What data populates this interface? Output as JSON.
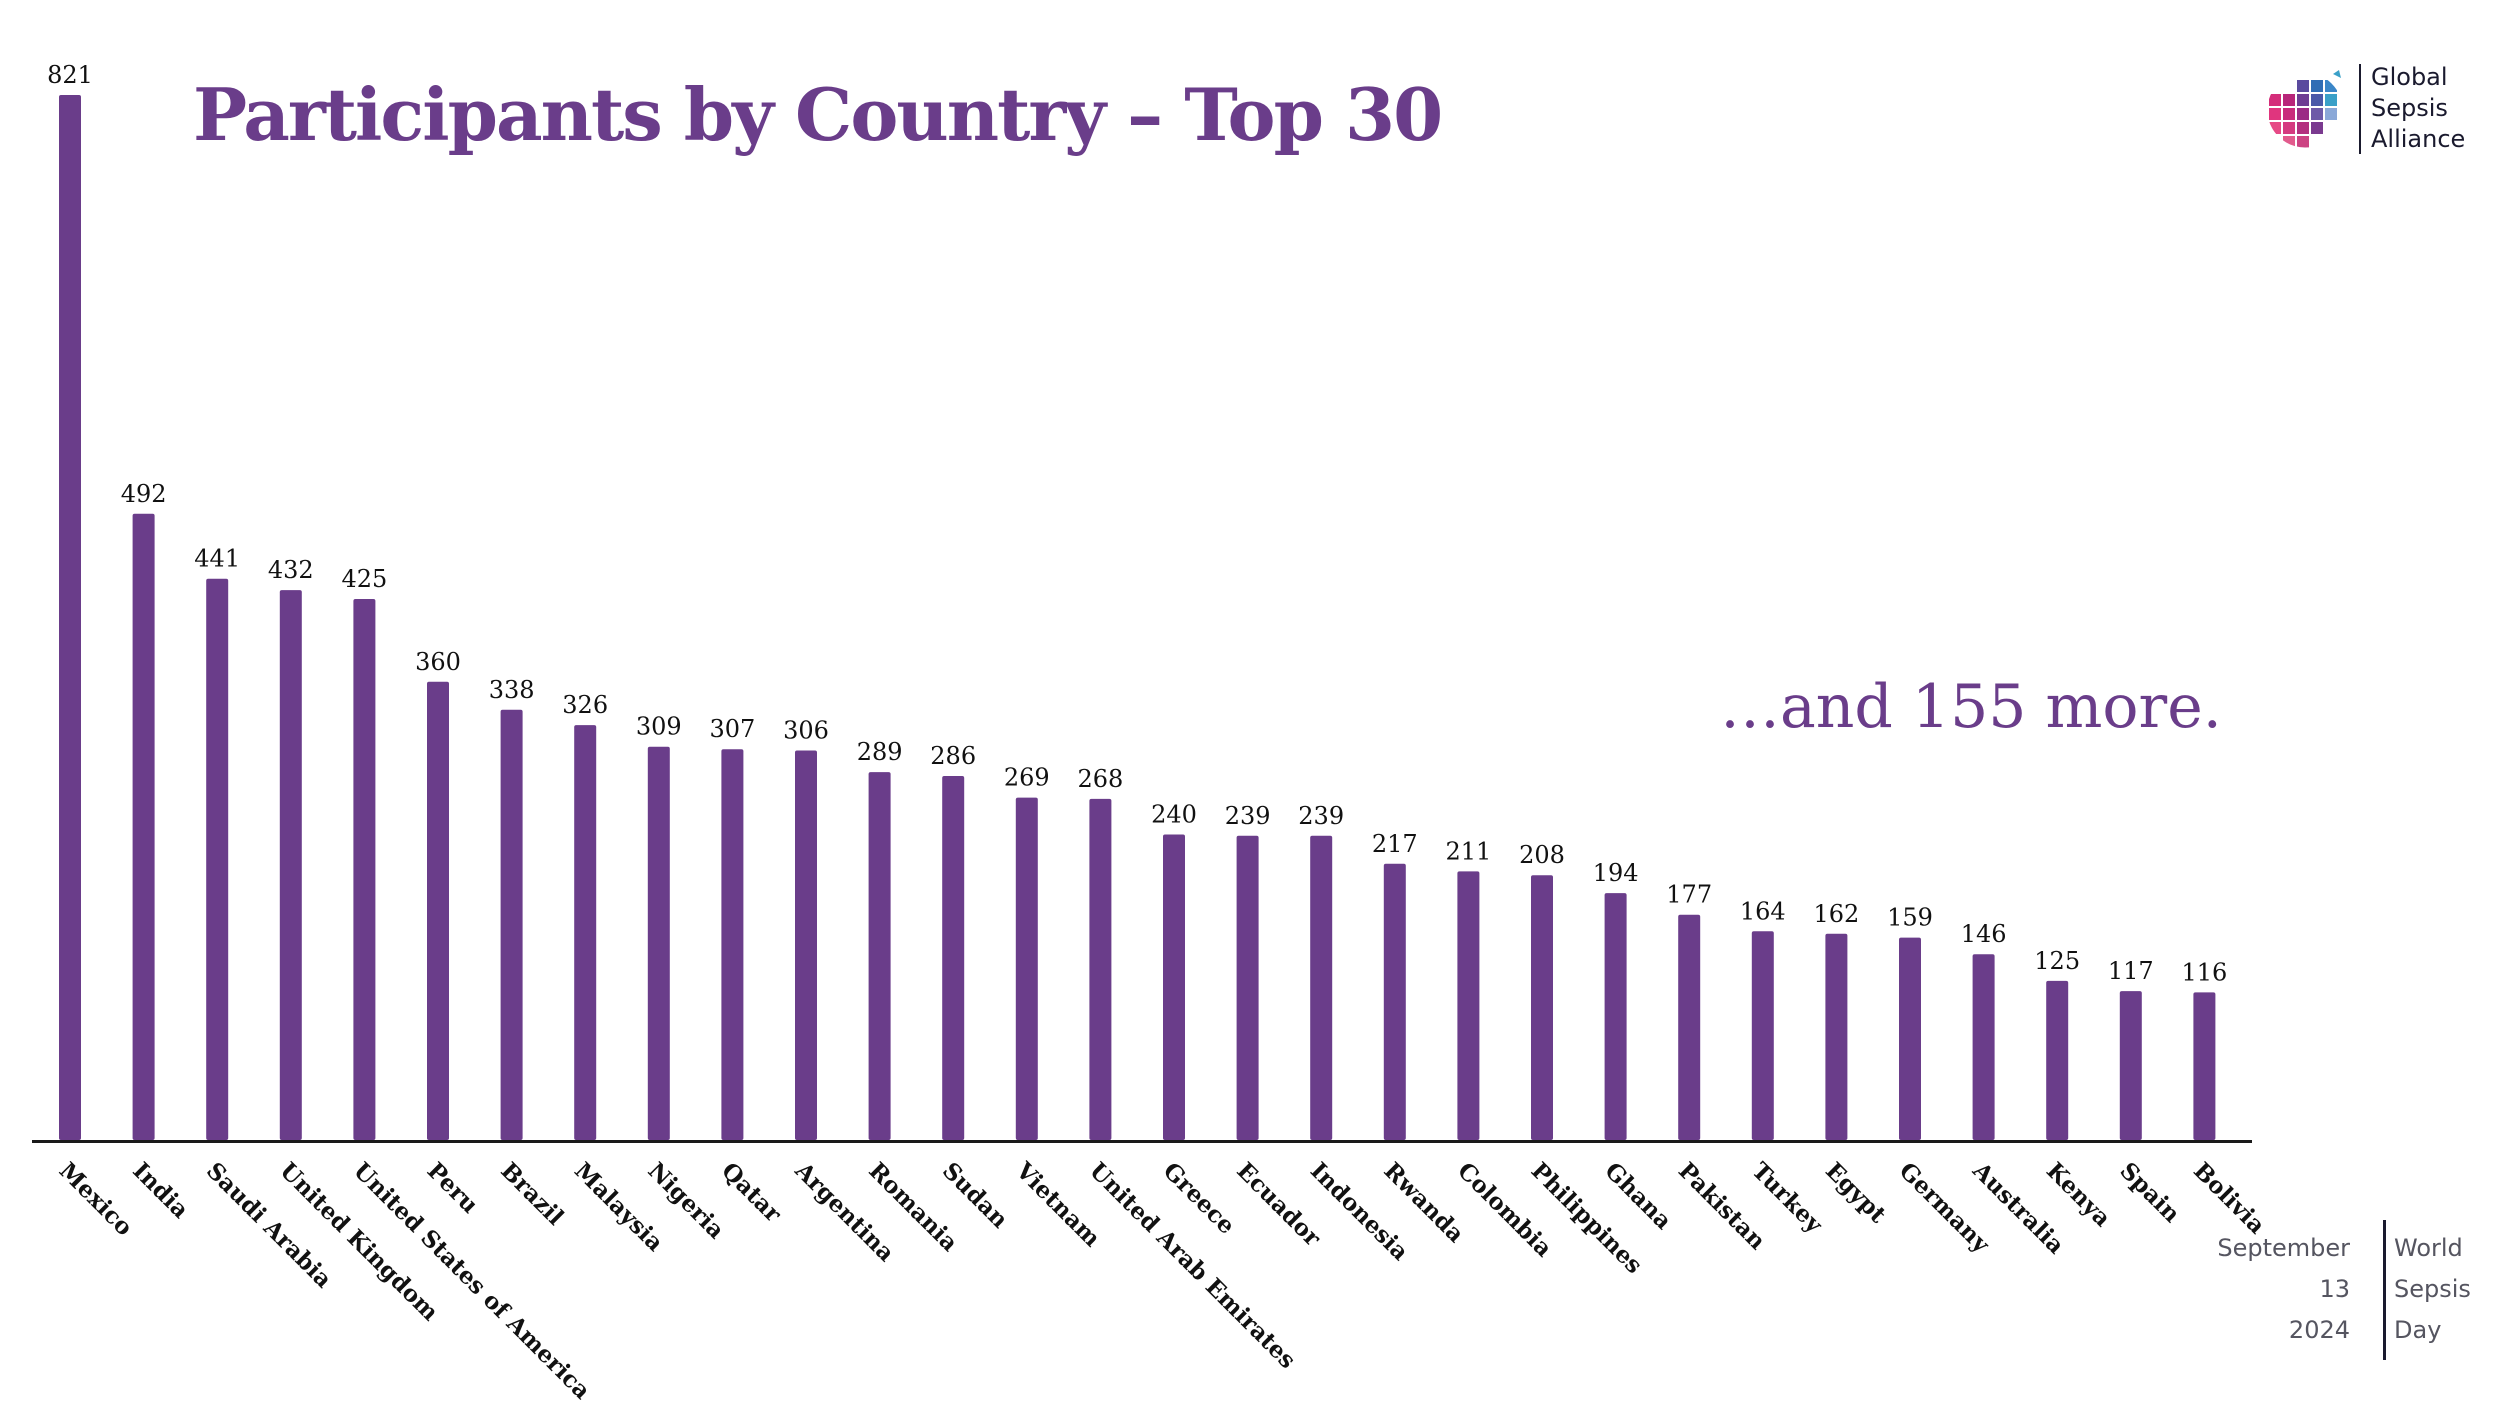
{
  "page": {
    "title": "Participants by Country – Top 30",
    "more_note": "…and 155 more.",
    "logo": {
      "line1": "Global",
      "line2": "Sepsis",
      "line3": "Alliance",
      "icon": "globe-icon"
    },
    "event": {
      "left": [
        "September",
        "13",
        "2024"
      ],
      "right": [
        "World",
        "Sepsis",
        "Day"
      ]
    }
  },
  "colors": {
    "bar": "#6a3d8a",
    "title": "#6a3d8a",
    "axis": "#1a1a1a",
    "label": "#111111"
  },
  "chart_data": {
    "type": "bar",
    "title": "Participants by Country – Top 30",
    "xlabel": "",
    "ylabel": "",
    "ylim": [
      0,
      821
    ],
    "grid": false,
    "data_labels": true,
    "categories": [
      "Mexico",
      "India",
      "Saudi Arabia",
      "United Kingdom",
      "United States of America",
      "Peru",
      "Brazil",
      "Malaysia",
      "Nigeria",
      "Qatar",
      "Argentina",
      "Romania",
      "Sudan",
      "Vietnam",
      "United Arab Emirates",
      "Greece",
      "Ecuador",
      "Indonesia",
      "Rwanda",
      "Colombia",
      "Philippines",
      "Ghana",
      "Pakistan",
      "Turkey",
      "Egypt",
      "Germany",
      "Australia",
      "Kenya",
      "Spain",
      "Bolivia"
    ],
    "values": [
      821,
      492,
      441,
      432,
      425,
      360,
      338,
      326,
      309,
      307,
      306,
      289,
      286,
      269,
      268,
      240,
      239,
      239,
      217,
      211,
      208,
      194,
      177,
      164,
      162,
      159,
      146,
      125,
      117,
      116
    ]
  }
}
